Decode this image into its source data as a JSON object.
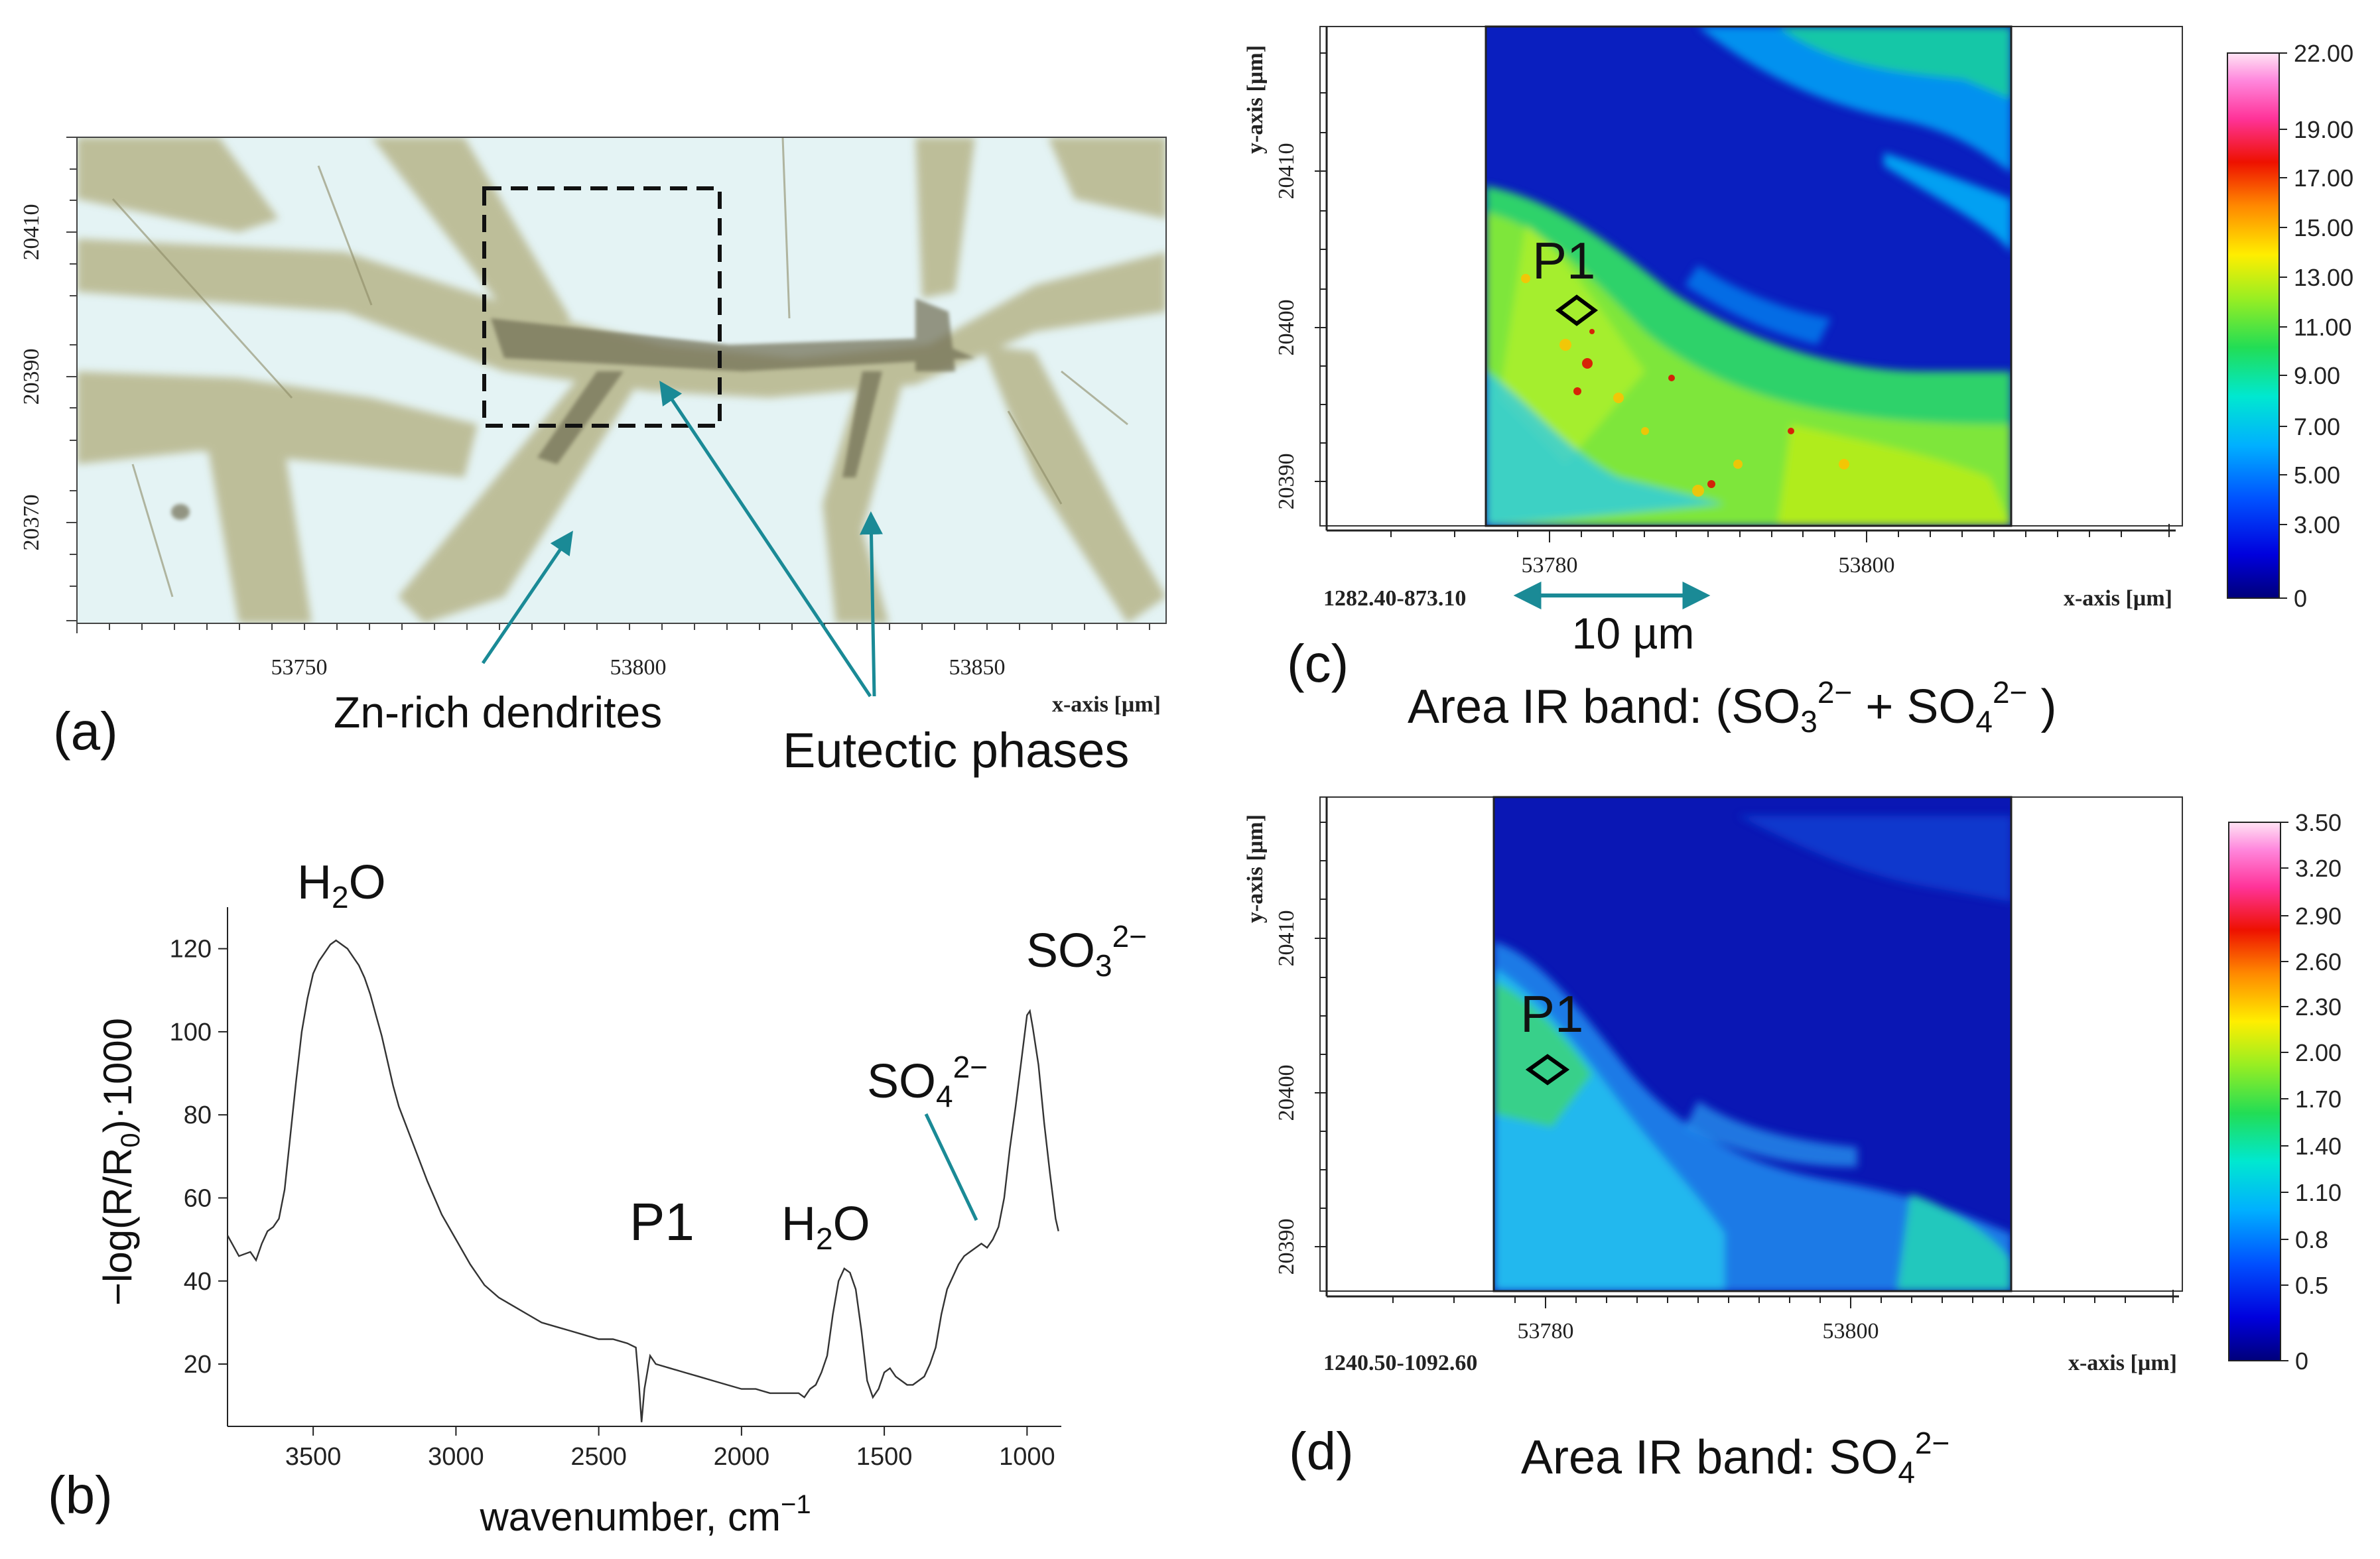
{
  "panel_a": {
    "label": "(a)",
    "x_ticks": [
      "53750",
      "53800",
      "53850"
    ],
    "y_ticks": [
      "20410",
      "20390",
      "20370"
    ],
    "x_axis_title": "x-axis [µm]",
    "annotation_dendrites": "Zn-rich dendrites",
    "annotation_eutectic": "Eutectic phases",
    "arrow_color": "#1a8a96"
  },
  "panel_c": {
    "label": "(c)",
    "x_ticks": [
      "53780",
      "53800"
    ],
    "y_ticks": [
      "20410",
      "20400",
      "20390"
    ],
    "x_axis_title": "x-axis [µm]",
    "y_axis_title": "y-axis [µm]",
    "range_text": "1282.40-873.10",
    "point_label": "P1",
    "scalebar_label": "10 µm",
    "caption_prefix": "Area IR band: (SO",
    "caption_sub1": "3",
    "caption_sup1": "2−",
    "caption_mid": " + SO",
    "caption_sub2": "4",
    "caption_sup2": "2−",
    "caption_suffix": " )",
    "colorbar_ticks": [
      "22.00",
      "19.00",
      "17.00",
      "15.00",
      "13.00",
      "11.00",
      "9.00",
      "7.00",
      "5.00",
      "3.00",
      "0"
    ]
  },
  "panel_d": {
    "label": "(d)",
    "x_ticks": [
      "53780",
      "53800"
    ],
    "y_ticks": [
      "20410",
      "20400",
      "20390"
    ],
    "x_axis_title": "x-axis [µm]",
    "y_axis_title": "y-axis [µm]",
    "range_text": "1240.50-1092.60",
    "point_label": "P1",
    "caption_prefix": "Area IR band: SO",
    "caption_sub": "4",
    "caption_sup": "2−",
    "colorbar_ticks": [
      "3.50",
      "3.20",
      "2.90",
      "2.60",
      "2.30",
      "2.00",
      "1.70",
      "1.40",
      "1.10",
      "0.8",
      "0.5",
      "0"
    ]
  },
  "panel_b": {
    "label": "(b)",
    "point_label": "P1",
    "peak_h2o_main": "H",
    "peak_h2o_main_sub": "2",
    "peak_h2o_main_rest": "O",
    "peak_h2o_bend": "H",
    "peak_h2o_bend_sub": "2",
    "peak_h2o_bend_rest": "O",
    "peak_so4": "SO",
    "peak_so4_sub": "4",
    "peak_so4_sup": "2−",
    "peak_so3": "SO",
    "peak_so3_sub": "3",
    "peak_so3_sup": "2−",
    "ylabel_text": "−log(R/R",
    "ylabel_sub": "0",
    "ylabel_rest": ")·1000",
    "xlabel_text": "wavenumber, cm",
    "xlabel_sup": "−1"
  },
  "chart_data": {
    "type": "line",
    "xlabel": "wavenumber, cm−1",
    "ylabel": "−log(R/R0)·1000",
    "xlim": [
      3800,
      880
    ],
    "ylim": [
      5,
      130
    ],
    "x_ticks": [
      3500,
      3000,
      2500,
      2000,
      1500,
      1000
    ],
    "y_ticks": [
      20,
      40,
      60,
      80,
      100,
      120
    ],
    "series": [
      {
        "x": [
          3800,
          3760,
          3720,
          3700,
          3680,
          3660,
          3640,
          3620,
          3600,
          3580,
          3560,
          3540,
          3520,
          3500,
          3480,
          3460,
          3440,
          3420,
          3400,
          3380,
          3360,
          3340,
          3320,
          3300,
          3280,
          3260,
          3240,
          3220,
          3200,
          3150,
          3100,
          3050,
          3000,
          2950,
          2900,
          2850,
          2800,
          2750,
          2700,
          2650,
          2600,
          2550,
          2500,
          2450,
          2400,
          2370,
          2360,
          2350,
          2340,
          2330,
          2320,
          2300,
          2250,
          2200,
          2150,
          2100,
          2050,
          2000,
          1950,
          1900,
          1850,
          1800,
          1780,
          1760,
          1740,
          1720,
          1700,
          1680,
          1660,
          1640,
          1620,
          1600,
          1580,
          1560,
          1540,
          1520,
          1500,
          1480,
          1460,
          1440,
          1420,
          1400,
          1380,
          1360,
          1340,
          1320,
          1300,
          1280,
          1260,
          1240,
          1220,
          1200,
          1180,
          1160,
          1140,
          1120,
          1100,
          1080,
          1060,
          1040,
          1020,
          1000,
          990,
          980,
          960,
          940,
          920,
          900,
          890
        ],
        "y": [
          51,
          46,
          47,
          45,
          49,
          52,
          53,
          55,
          62,
          75,
          88,
          100,
          108,
          114,
          117,
          119,
          121,
          122,
          121,
          120,
          118,
          116,
          113,
          109,
          104,
          99,
          93,
          87,
          82,
          73,
          64,
          56,
          50,
          44,
          39,
          36,
          34,
          32,
          30,
          29,
          28,
          27,
          26,
          26,
          25,
          24,
          16,
          6,
          14,
          18,
          22,
          20,
          19,
          18,
          17,
          16,
          15,
          14,
          14,
          13,
          13,
          13,
          12,
          14,
          15,
          18,
          22,
          32,
          40,
          43,
          42,
          38,
          28,
          16,
          12,
          14,
          18,
          19,
          17,
          16,
          15,
          15,
          16,
          17,
          20,
          24,
          32,
          38,
          41,
          44,
          46,
          47,
          48,
          49,
          48,
          50,
          53,
          60,
          72,
          82,
          93,
          104,
          105,
          101,
          92,
          78,
          66,
          55,
          52
        ]
      }
    ]
  },
  "maps": {
    "map_c_colors": [
      "#00008f",
      "#0000cc",
      "#0033ff",
      "#0077ff",
      "#00bbff",
      "#00e5cc",
      "#22dd66",
      "#77e633",
      "#ccf000",
      "#ffbb00",
      "#ff5500",
      "#dd0000",
      "#ff44cc",
      "#ffccee"
    ],
    "map_d_colors": [
      "#00008f",
      "#0000c8",
      "#0033f0",
      "#0070ff",
      "#00aaff",
      "#00d8e6",
      "#22dd88",
      "#66ee33",
      "#ccee00",
      "#ffbb00",
      "#ff5500",
      "#dd0000",
      "#ff44cc",
      "#ffccee"
    ]
  }
}
